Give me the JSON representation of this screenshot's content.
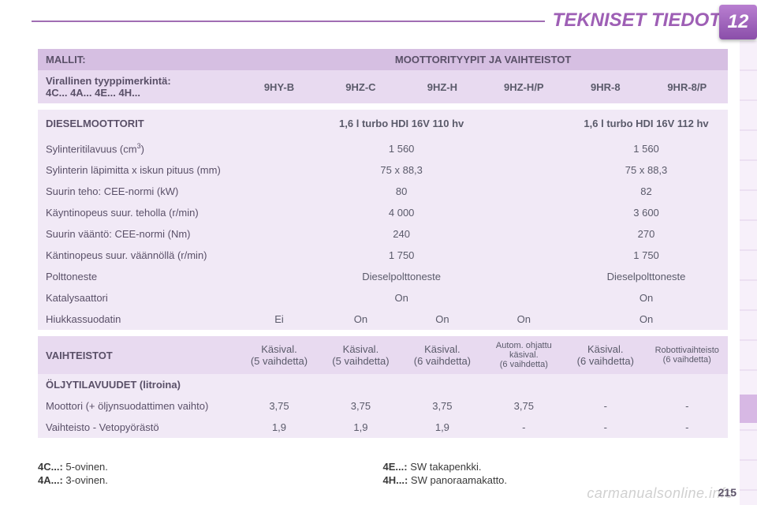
{
  "header": {
    "title": "TEKNISET TIEDOT",
    "chapter": "12"
  },
  "pagenum": "215",
  "watermark": "carmanualsonline.info",
  "table": {
    "mallit_label": "MALLIT:",
    "moottori_header": "MOOTTORITYYPIT JA VAIHTEISTOT",
    "virallinen_label": "Virallinen tyyppimerkintä:\n4C... 4A... 4E... 4H...",
    "cols": [
      "9HY-B",
      "9HZ-C",
      "9HZ-H",
      "9HZ-H/P",
      "9HR-8",
      "9HR-8/P"
    ],
    "diesel_label": "DIESELMOOTTORIT",
    "diesel_a": "1,6 l turbo HDI 16V 110 hv",
    "diesel_b": "1,6 l turbo HDI 16V 112 hv",
    "rows": [
      {
        "label": "Sylinteritilavuus (cm",
        "sup": "3",
        "label2": ")",
        "a": "1 560",
        "b": "1 560"
      },
      {
        "label": "Sylinterin läpimitta x iskun pituus (mm)",
        "a": "75 x 88,3",
        "b": "75 x 88,3"
      },
      {
        "label": "Suurin teho: CEE-normi (kW)",
        "a": "80",
        "b": "82"
      },
      {
        "label": "Käyntinopeus suur. teholla (r/min)",
        "a": "4 000",
        "b": "3 600"
      },
      {
        "label": "Suurin vääntö: CEE-normi (Nm)",
        "a": "240",
        "b": "270"
      },
      {
        "label": "Käntinopeus suur. väännöllä (r/min)",
        "a": "1 750",
        "b": "1 750"
      },
      {
        "label": "Polttoneste",
        "a": "Dieselpolttoneste",
        "b": "Dieselpolttoneste"
      },
      {
        "label": "Katalysaattori",
        "a": "On",
        "b": "On"
      }
    ],
    "hiukka": {
      "label": "Hiukkassuodatin",
      "v": [
        "Ei",
        "On",
        "On",
        "On",
        "On"
      ]
    },
    "vaihteistot_label": "VAIHTEISTOT",
    "vaihteistot": [
      {
        "l1": "Käsival.",
        "l2": "(5 vaihdetta)"
      },
      {
        "l1": "Käsival.",
        "l2": "(5 vaihdetta)"
      },
      {
        "l1": "Käsival.",
        "l2": "(6 vaihdetta)"
      },
      {
        "l1": "Autom. ohjattu käsival.",
        "l2": "(6 vaihdetta)"
      },
      {
        "l1": "Käsival.",
        "l2": "(6 vaihdetta)"
      },
      {
        "l1": "Robottivaihteisto",
        "l2": "(6 vaihdetta)"
      }
    ],
    "oljy_label": "ÖLJYTILAVUUDET (litroina)",
    "moottori": {
      "label": "Moottori (+ öljynsuodattimen vaihto)",
      "v": [
        "3,75",
        "3,75",
        "3,75",
        "3,75",
        "-",
        "-"
      ]
    },
    "veto": {
      "label": "Vaihteisto - Vetopyörästö",
      "v": [
        "1,9",
        "1,9",
        "1,9",
        "-",
        "-",
        "-"
      ]
    }
  },
  "footnotes": {
    "c4c": "4C...:",
    "c4c_t": " 5-ovinen.",
    "c4a": "4A...:",
    "c4a_t": " 3-ovinen.",
    "c4e": "4E...:",
    "c4e_t": " SW takapenkki.",
    "c4h": "4H...:",
    "c4h_t": " SW panoraamakatto."
  },
  "colors": {
    "header_text": "#9e5fb5",
    "row_header_bg": "#d6bfe2",
    "row_sub1_bg": "#e8daf0",
    "row_sub2_bg": "#f1e9f6"
  }
}
